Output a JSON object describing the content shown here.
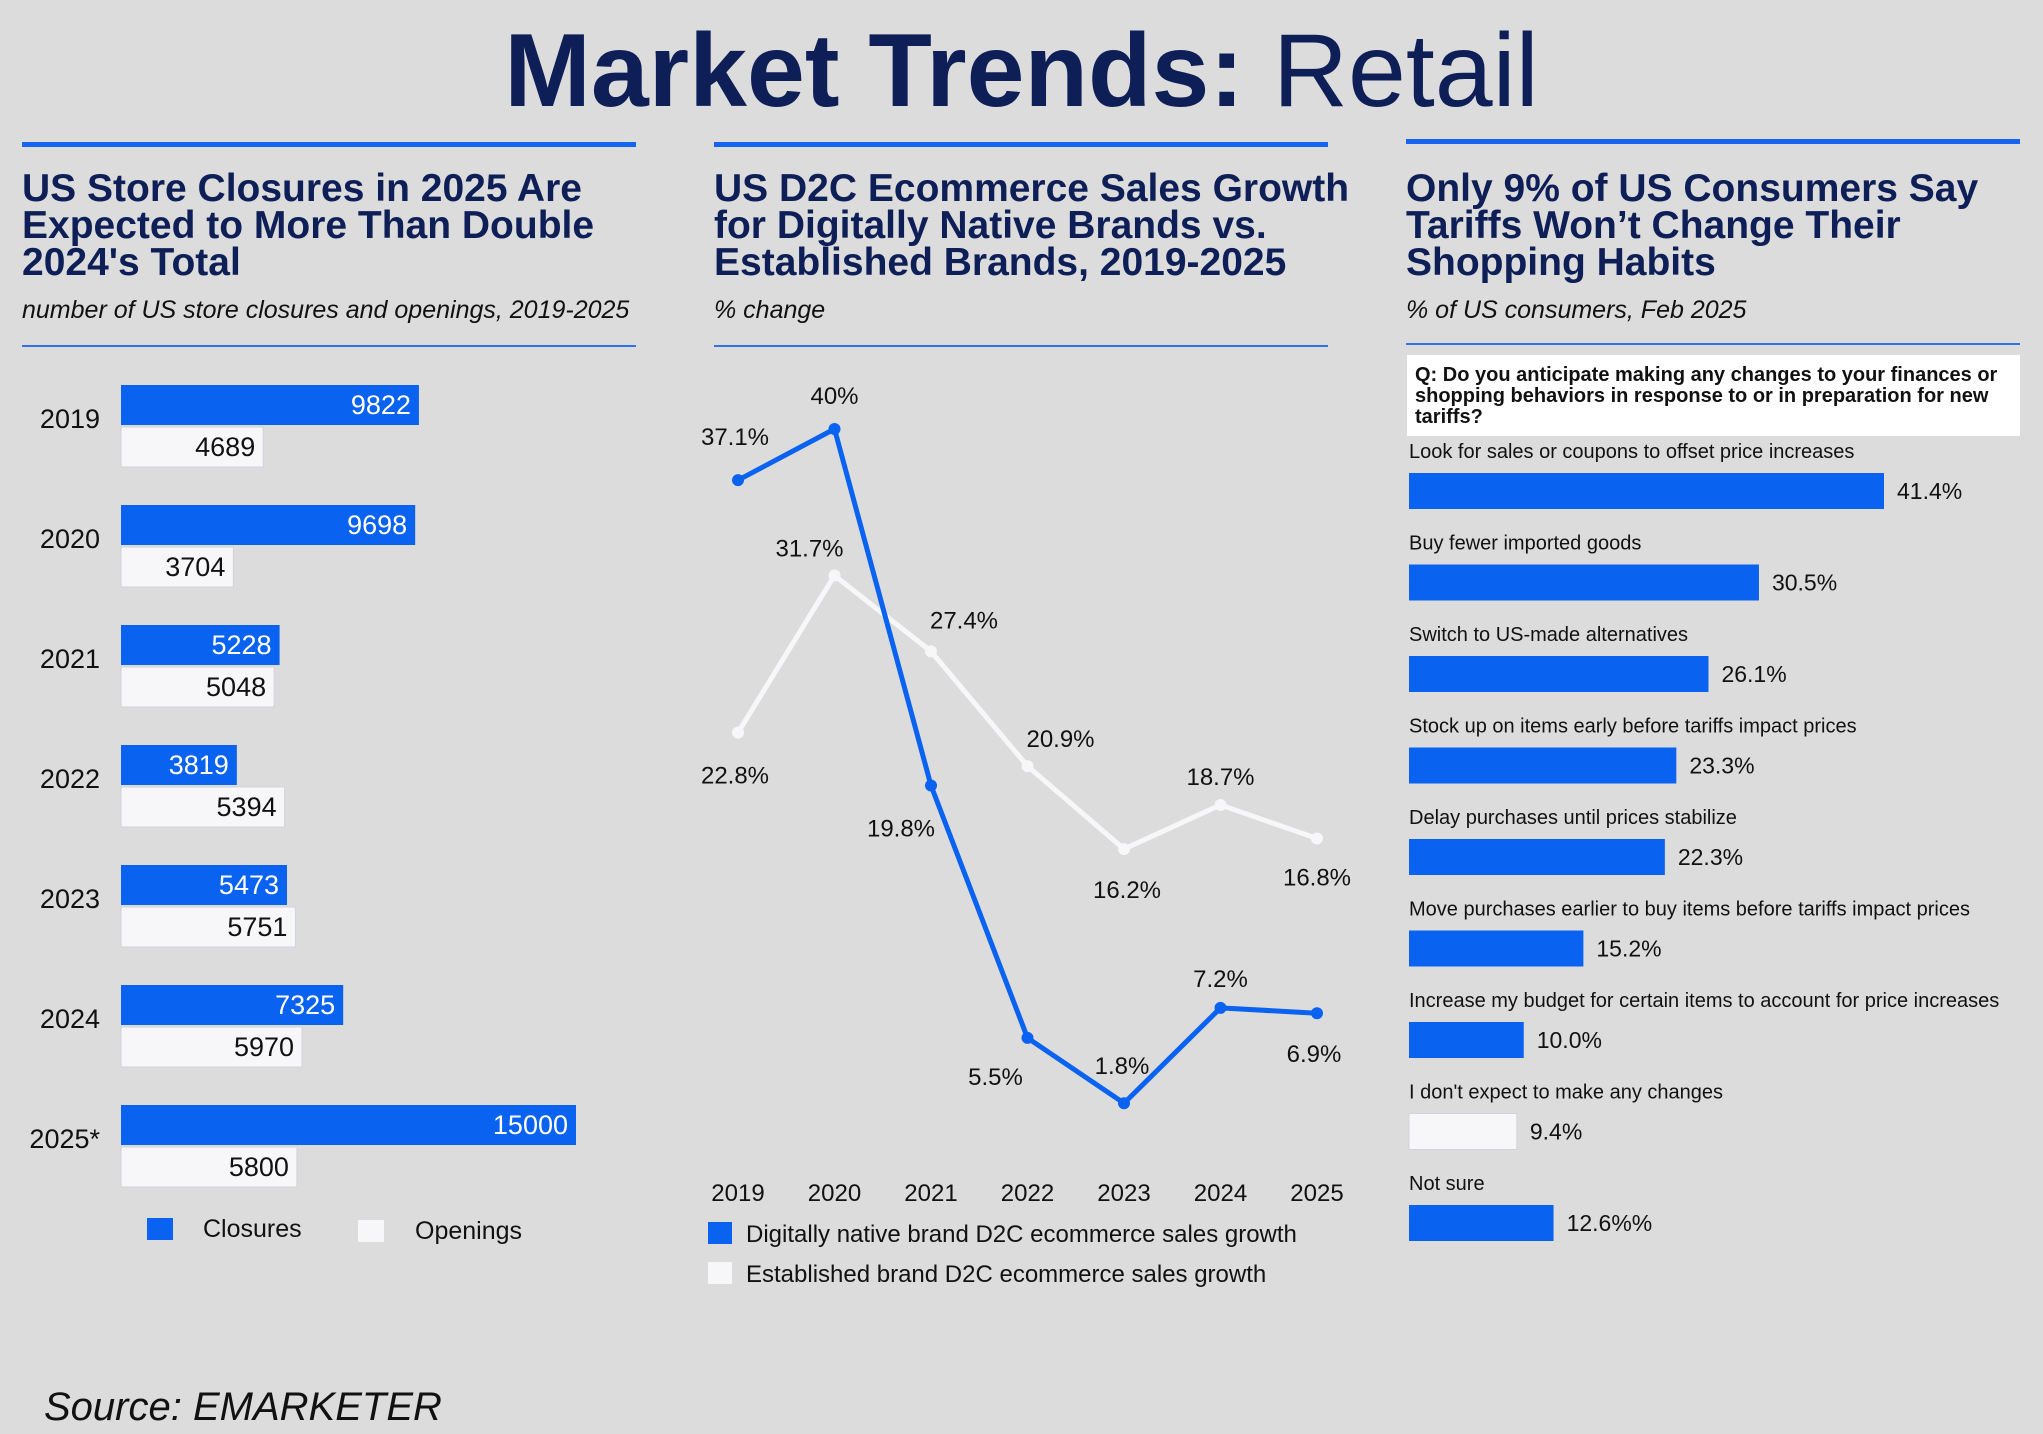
{
  "page": {
    "title_bold": "Market Trends:",
    "title_light": "Retail",
    "source": "Source: EMARKETER"
  },
  "colors": {
    "accent": "#0a62f0",
    "navy": "#0e1f57",
    "white_series": "#f7f7fa",
    "background": "#dcdcdc"
  },
  "panels": {
    "closures": {
      "title_lines": [
        "US Store Closures in 2025 Are",
        "Expected to More Than Double",
        "2024's Total"
      ],
      "subtitle": "number of US store closures and openings, 2019-2025"
    },
    "d2c": {
      "title_lines": [
        "US D2C Ecommerce Sales Growth",
        "for Digitally Native Brands vs.",
        "Established Brands, 2019-2025"
      ],
      "subtitle": "% change"
    },
    "tariffs": {
      "title_lines": [
        "Only 9% of US Consumers Say",
        "Tariffs Won’t Change Their",
        "Shopping Habits"
      ],
      "subtitle": "% of US consumers, Feb 2025",
      "question": "Q: Do you anticipate making any changes to your finances or shopping behaviors in response to or in preparation for new tariffs?"
    }
  },
  "chart_data": [
    {
      "type": "bar",
      "orientation": "horizontal",
      "categories": [
        "2019",
        "2020",
        "2021",
        "2022",
        "2023",
        "2024",
        "2025*"
      ],
      "series": [
        {
          "name": "Closures",
          "values": [
            9822,
            9698,
            5228,
            3819,
            5473,
            7325,
            15000
          ],
          "color": "#0a62f0"
        },
        {
          "name": "Openings",
          "values": [
            4689,
            3704,
            5048,
            5394,
            5751,
            5970,
            5800
          ],
          "color": "#f7f7fa"
        }
      ],
      "legend": "bottom",
      "grid": false
    },
    {
      "type": "line",
      "x": [
        "2019",
        "2020",
        "2021",
        "2022",
        "2023",
        "2024",
        "2025"
      ],
      "series": [
        {
          "name": "Digitally native brand D2C ecommerce sales growth",
          "values": [
            37.1,
            40,
            19.8,
            5.5,
            1.8,
            7.2,
            6.9
          ],
          "labels": [
            "37.1%",
            "40%",
            "19.8%",
            "5.5%",
            "1.8%",
            "7.2%",
            "6.9%"
          ],
          "color": "#0a62f0"
        },
        {
          "name": "Established brand D2C ecommerce sales growth",
          "values": [
            22.8,
            31.7,
            27.4,
            20.9,
            16.2,
            18.7,
            16.8
          ],
          "labels": [
            "22.8%",
            "31.7%",
            "27.4%",
            "20.9%",
            "16.2%",
            "18.7%",
            "16.8%"
          ],
          "color": "#f7f7fa"
        }
      ],
      "legend": "bottom",
      "grid": false
    },
    {
      "type": "bar",
      "orientation": "horizontal",
      "categories": [
        "Look for sales or coupons to offset price increases",
        "Buy fewer imported goods",
        "Switch to US-made alternatives",
        "Stock up on items early before tariffs impact prices",
        "Delay purchases until prices stabilize",
        "Move purchases earlier to buy items before tariffs impact prices",
        "Increase my budget for certain items to account for price increases",
        "I don't expect to make any changes",
        "Not sure"
      ],
      "values": [
        41.4,
        30.5,
        26.1,
        23.3,
        22.3,
        15.2,
        10.0,
        9.4,
        12.6
      ],
      "labels": [
        "41.4%",
        "30.5%",
        "26.1%",
        "23.3%",
        "22.3%",
        "15.2%",
        "10.0%",
        "9.4%",
        "12.6%%"
      ],
      "colors": [
        "#0a62f0",
        "#0a62f0",
        "#0a62f0",
        "#0a62f0",
        "#0a62f0",
        "#0a62f0",
        "#0a62f0",
        "#f7f7fa",
        "#0a62f0"
      ],
      "grid": false
    }
  ]
}
